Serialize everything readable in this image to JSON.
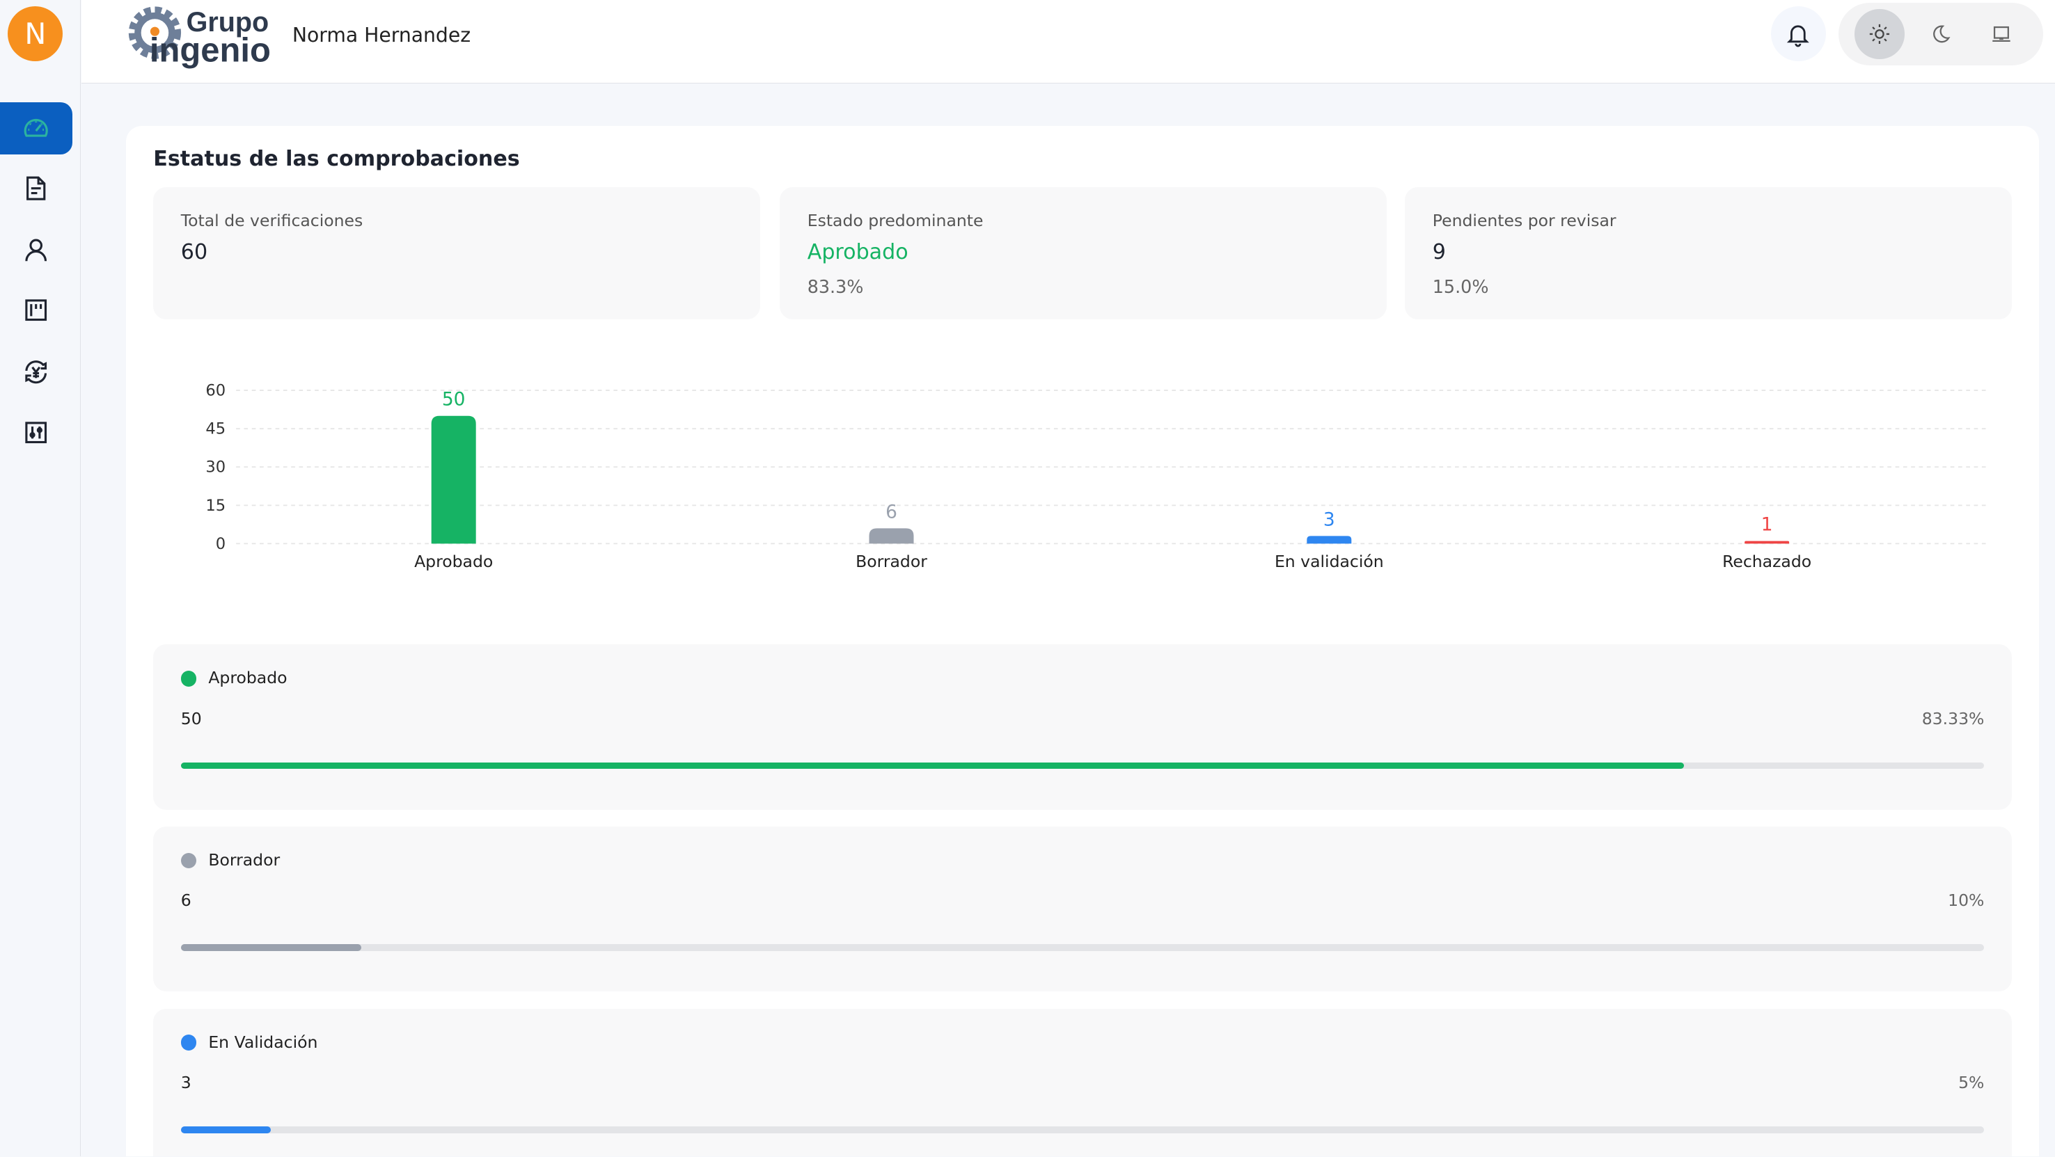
{
  "sidebar": {
    "avatar_letter": "N",
    "items": [
      {
        "icon": "dashboard-gauge-icon",
        "active": true
      },
      {
        "icon": "document-icon"
      },
      {
        "icon": "user-icon"
      },
      {
        "icon": "board-icon"
      },
      {
        "icon": "currency-exchange-icon"
      },
      {
        "icon": "sliders-icon"
      }
    ]
  },
  "header": {
    "logo_text_top": "Grupo",
    "logo_text_bottom": "ingenio",
    "user_name": "Norma Hernandez",
    "theme_options": [
      "light",
      "dark",
      "system"
    ],
    "theme_selected": "light"
  },
  "main": {
    "title": "Estatus de las comprobaciones",
    "stats": [
      {
        "label": "Total de verificaciones",
        "value": "60"
      },
      {
        "label": "Estado predominante",
        "value": "Aprobado",
        "sub": "83.3%",
        "value_color": "#16b364"
      },
      {
        "label": "Pendientes por revisar",
        "value": "9",
        "sub": "15.0%"
      }
    ],
    "progress": [
      {
        "name": "Aprobado",
        "count": "50",
        "percent": "83.33%",
        "fraction": 0.8333,
        "color": "#16b364"
      },
      {
        "name": "Borrador",
        "count": "6",
        "percent": "10%",
        "fraction": 0.1,
        "color": "#9aa1ad"
      },
      {
        "name": "En Validación",
        "count": "3",
        "percent": "5%",
        "fraction": 0.05,
        "color": "#2e86f0"
      }
    ]
  },
  "chart_data": {
    "type": "bar",
    "categories": [
      "Aprobado",
      "Borrador",
      "En validación",
      "Rechazado"
    ],
    "values": [
      50,
      6,
      3,
      1
    ],
    "colors": [
      "#16b364",
      "#9aa1ad",
      "#2e86f0",
      "#ef4444"
    ],
    "yticks": [
      "0",
      "15",
      "30",
      "45",
      "60"
    ],
    "ylim": [
      0,
      60
    ],
    "grid": true
  }
}
